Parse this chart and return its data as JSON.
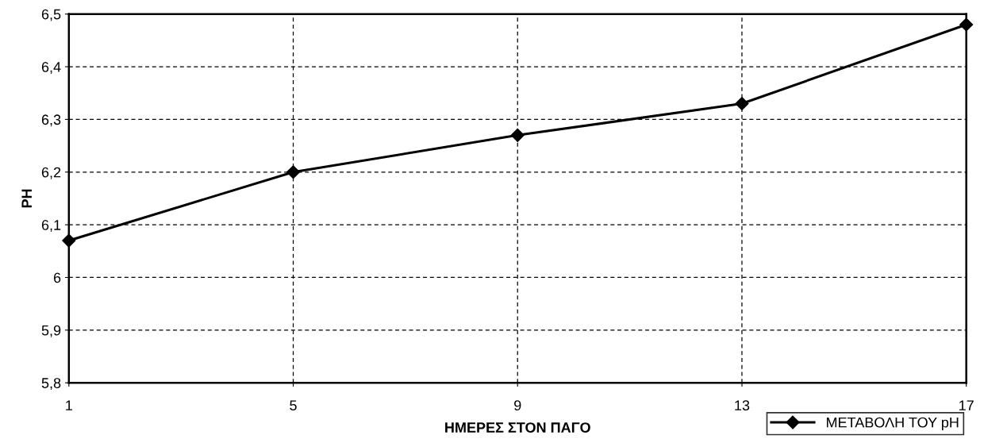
{
  "chart_data": {
    "type": "line",
    "xlabel": "ΗΜΕΡΕΣ ΣΤΟΝ ΠΑΓΟ",
    "ylabel": "PH",
    "x": [
      1,
      5,
      9,
      13,
      17
    ],
    "series": [
      {
        "name": "ΜΕΤΑΒΟΛΗ ΤΟΥ pH",
        "color": "#000000",
        "values": [
          6.07,
          6.2,
          6.27,
          6.33,
          6.48
        ]
      }
    ],
    "xlim": [
      1,
      17
    ],
    "xticks": [
      1,
      5,
      9,
      13,
      17
    ],
    "ylim": [
      5.8,
      6.5
    ],
    "yticks": [
      {
        "value": 5.8,
        "label": "5,8"
      },
      {
        "value": 5.9,
        "label": "5,9"
      },
      {
        "value": 6.0,
        "label": "6"
      },
      {
        "value": 6.1,
        "label": "6,1"
      },
      {
        "value": 6.2,
        "label": "6,2"
      },
      {
        "value": 6.3,
        "label": "6,3"
      },
      {
        "value": 6.4,
        "label": "6,4"
      },
      {
        "value": 6.5,
        "label": "6,5"
      }
    ],
    "grid": true,
    "legend": "bottom right",
    "marker": "diamond",
    "line_style": "solid"
  }
}
